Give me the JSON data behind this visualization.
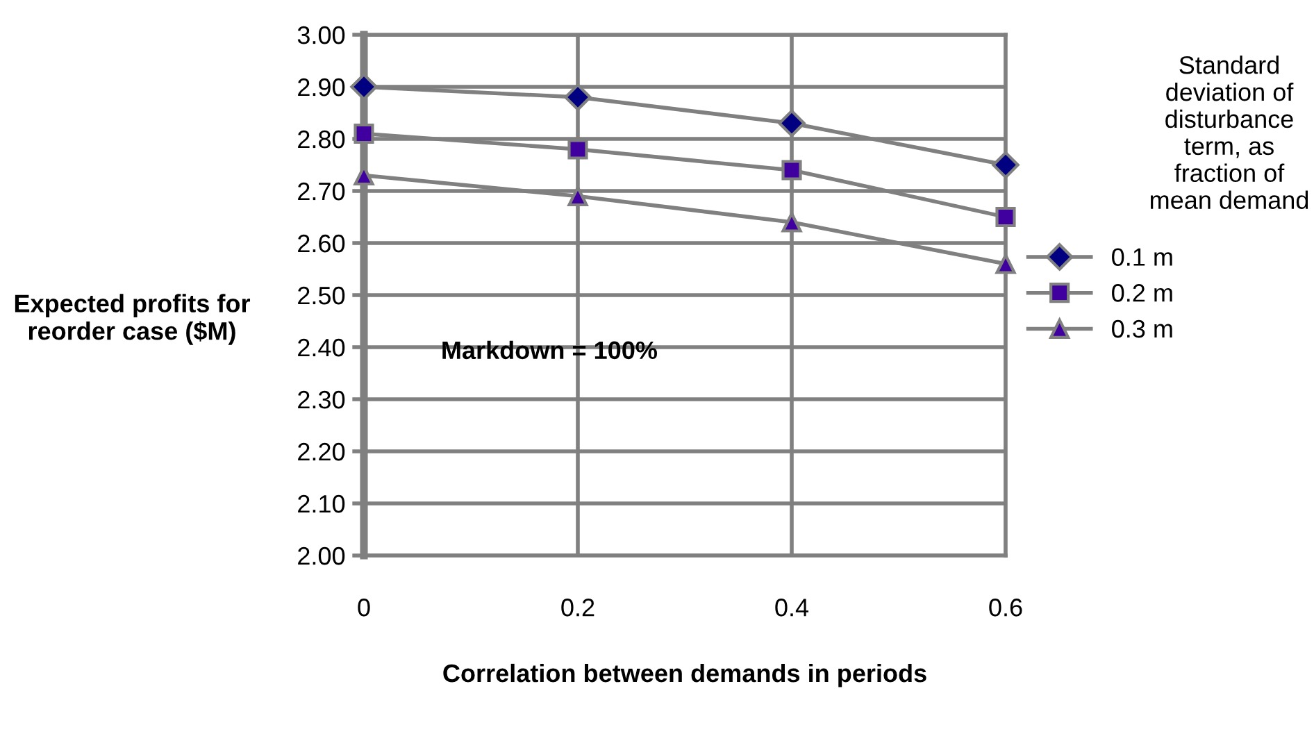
{
  "chart_data": {
    "type": "line",
    "xlabel": "Correlation between demands in periods",
    "ylabel": "Expected profits for reorder case ($M)",
    "legend_title": "Standard deviation of disturbance term, as fraction of mean demand",
    "categories": [
      "0",
      "0.2",
      "0.4",
      "0.6"
    ],
    "series": [
      {
        "name": "0.1 m",
        "color": "#000080",
        "marker": "diamond",
        "values": [
          2.9,
          2.88,
          2.83,
          2.75
        ]
      },
      {
        "name": "0.2 m",
        "color": "#4000a0",
        "marker": "square",
        "values": [
          2.81,
          2.78,
          2.74,
          2.65
        ]
      },
      {
        "name": "0.3 m",
        "color": "#4000a0",
        "marker": "triangle",
        "values": [
          2.73,
          2.69,
          2.64,
          2.56
        ]
      }
    ],
    "ylim": [
      2.0,
      3.0
    ],
    "yticks": [
      {
        "value": 2.0,
        "label": "2.00"
      },
      {
        "value": 2.1,
        "label": "2.10"
      },
      {
        "value": 2.2,
        "label": "2.20"
      },
      {
        "value": 2.3,
        "label": "2.30"
      },
      {
        "value": 2.4,
        "label": "2.40"
      },
      {
        "value": 2.5,
        "label": "2.50"
      },
      {
        "value": 2.6,
        "label": "2.60"
      },
      {
        "value": 2.7,
        "label": "2.70"
      },
      {
        "value": 2.8,
        "label": "2.80"
      },
      {
        "value": 2.9,
        "label": "2.90"
      },
      {
        "value": 3.0,
        "label": "3.00"
      }
    ],
    "annotations": [
      "Markdown = 100%"
    ],
    "grid": true,
    "legend": "right",
    "line_style": "solid"
  }
}
